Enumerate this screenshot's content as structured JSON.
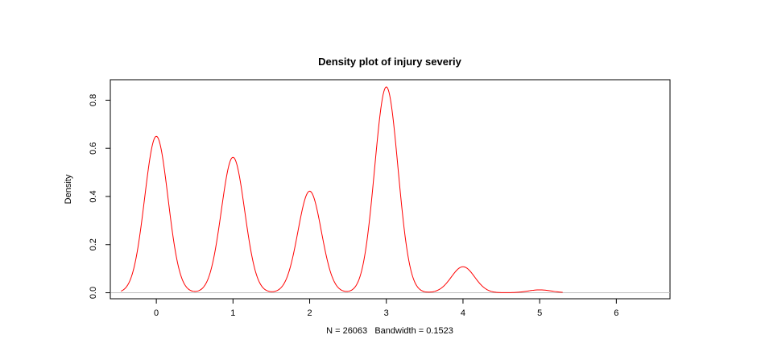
{
  "chart_data": {
    "type": "line",
    "title": "Density plot of injury severiy",
    "xlabel": "N = 26063   Bandwidth = 0.1523",
    "ylabel": "Density",
    "xlim": [
      -0.6,
      6.7
    ],
    "ylim": [
      -0.025,
      0.885
    ],
    "x_ticks": [
      0,
      1,
      2,
      3,
      4,
      5,
      6
    ],
    "x_tick_labels": [
      "0",
      "1",
      "2",
      "3",
      "4",
      "5",
      "6"
    ],
    "y_ticks": [
      0.0,
      0.2,
      0.4,
      0.6,
      0.8
    ],
    "y_tick_labels": [
      "0.0",
      "0.2",
      "0.4",
      "0.6",
      "0.8"
    ],
    "baseline": 0,
    "grid": false,
    "series": [
      {
        "color": "#ff0000",
        "x_range": [
          -0.46,
          5.3
        ],
        "bandwidth": 0.1523,
        "peaks": [
          {
            "x": 0,
            "density": 0.65
          },
          {
            "x": 1,
            "density": 0.563
          },
          {
            "x": 2,
            "density": 0.422
          },
          {
            "x": 3,
            "density": 0.855
          },
          {
            "x": 4,
            "density": 0.108
          },
          {
            "x": 5,
            "density": 0.012
          }
        ]
      }
    ],
    "colors": {
      "line": "#ff0000",
      "baseline": "#bfbfbf",
      "axis": "#000000"
    }
  }
}
